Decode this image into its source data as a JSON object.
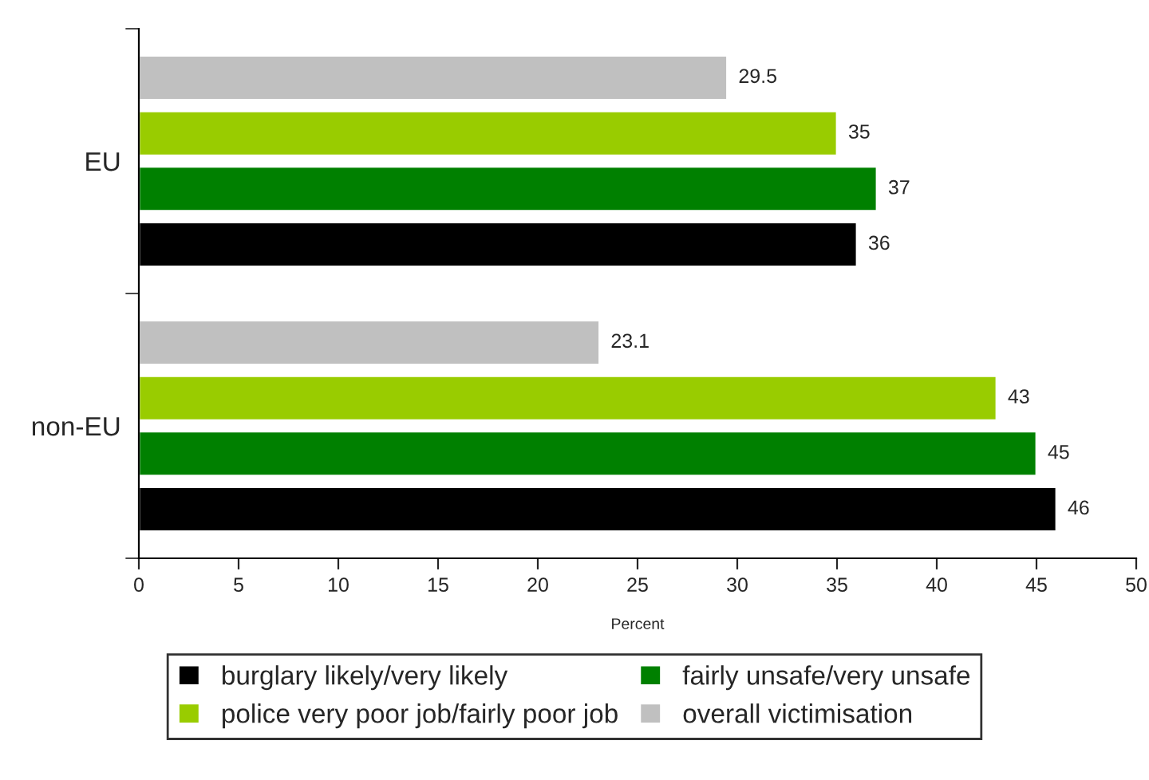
{
  "chart_data": {
    "type": "bar",
    "orientation": "horizontal",
    "xlabel": "Percent",
    "categories": [
      "EU",
      "non-EU"
    ],
    "series": [
      {
        "name": "burglary likely/very likely",
        "color": "#000000",
        "values": [
          36,
          46
        ]
      },
      {
        "name": "fairly unsafe/very unsafe",
        "color": "#008000",
        "values": [
          37,
          45
        ]
      },
      {
        "name": "police very poor job/fairly poor job",
        "color": "#99cc00",
        "values": [
          35,
          43
        ]
      },
      {
        "name": "overall victimisation",
        "color": "#c0c0c0",
        "values": [
          29.5,
          23.1
        ]
      }
    ],
    "xlim": [
      0,
      50
    ],
    "xticks": [
      0,
      5,
      10,
      15,
      20,
      25,
      30,
      35,
      40,
      45,
      50
    ],
    "data_labels": true,
    "grid": false,
    "legend": "bottom"
  }
}
